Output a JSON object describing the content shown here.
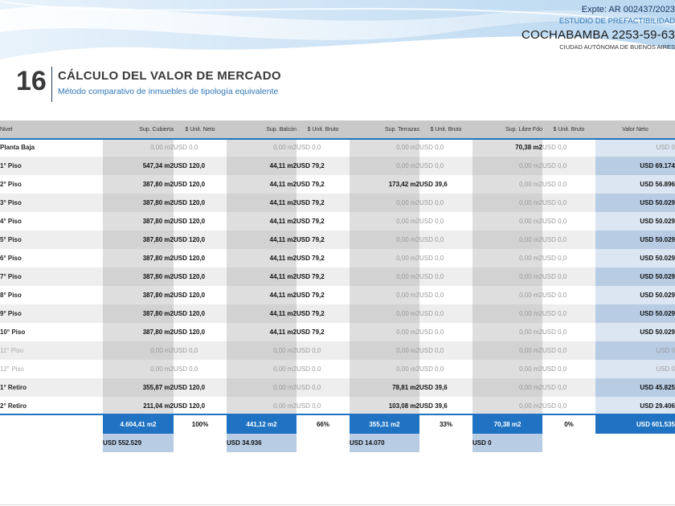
{
  "header": {
    "expte": "Expte: AR 002437/2023",
    "estudio": "ESTUDIO DE PREFACTIBILIDAD",
    "address": "COCHABAMBA 2253-59-63",
    "city": "CIUDAD AUTÓNOMA DE BUENOS AIRES"
  },
  "section": {
    "number": "16",
    "title": "CÁLCULO DEL VALOR DE MERCADO",
    "subtitle": "Método comparativo de inmuebles de tipología equivalente"
  },
  "columns": [
    "Nivel",
    "Sup. Cubierta",
    "$ Unit. Neto",
    "Sup. Balcón",
    "$ Unit. Bruto",
    "Sup. Terrazas",
    "$ Unit. Bruto",
    "Sup. Libre Fdo",
    "$ Unit. Bruto",
    "Valor Neto"
  ],
  "rows": [
    {
      "nivel": "Planta Baja",
      "dim": false,
      "cub": "0,00 m2",
      "cub_z": true,
      "u1": "USD 0,0",
      "u1_z": true,
      "bal": "0,00 m2",
      "bal_z": true,
      "u2": "USD 0,0",
      "u2_z": true,
      "ter": "0,00 m2",
      "ter_z": true,
      "u3": "USD 0,0",
      "u3_z": true,
      "lib": "70,38 m2",
      "lib_z": false,
      "u4": "USD 0,0",
      "u4_z": true,
      "neto": "USD 0",
      "neto_z": true
    },
    {
      "nivel": "1° Piso",
      "dim": false,
      "cub": "547,34 m2",
      "cub_z": false,
      "u1": "USD 120,0",
      "u1_z": false,
      "bal": "44,11 m2",
      "bal_z": false,
      "u2": "USD 79,2",
      "u2_z": false,
      "ter": "0,00 m2",
      "ter_z": true,
      "u3": "USD 0,0",
      "u3_z": true,
      "lib": "0,00 m2",
      "lib_z": true,
      "u4": "USD 0,0",
      "u4_z": true,
      "neto": "USD 69.174",
      "neto_z": false
    },
    {
      "nivel": "2° Piso",
      "dim": false,
      "cub": "387,80 m2",
      "cub_z": false,
      "u1": "USD 120,0",
      "u1_z": false,
      "bal": "44,11 m2",
      "bal_z": false,
      "u2": "USD 79,2",
      "u2_z": false,
      "ter": "173,42 m2",
      "ter_z": false,
      "u3": "USD 39,6",
      "u3_z": false,
      "lib": "0,00 m2",
      "lib_z": true,
      "u4": "USD 0,0",
      "u4_z": true,
      "neto": "USD 56.896",
      "neto_z": false
    },
    {
      "nivel": "3° Piso",
      "dim": false,
      "cub": "387,80 m2",
      "cub_z": false,
      "u1": "USD 120,0",
      "u1_z": false,
      "bal": "44,11 m2",
      "bal_z": false,
      "u2": "USD 79,2",
      "u2_z": false,
      "ter": "0,00 m2",
      "ter_z": true,
      "u3": "USD 0,0",
      "u3_z": true,
      "lib": "0,00 m2",
      "lib_z": true,
      "u4": "USD 0,0",
      "u4_z": true,
      "neto": "USD 50.029",
      "neto_z": false
    },
    {
      "nivel": "4° Piso",
      "dim": false,
      "cub": "387,80 m2",
      "cub_z": false,
      "u1": "USD 120,0",
      "u1_z": false,
      "bal": "44,11 m2",
      "bal_z": false,
      "u2": "USD 79,2",
      "u2_z": false,
      "ter": "0,00 m2",
      "ter_z": true,
      "u3": "USD 0,0",
      "u3_z": true,
      "lib": "0,00 m2",
      "lib_z": true,
      "u4": "USD 0,0",
      "u4_z": true,
      "neto": "USD 50.029",
      "neto_z": false
    },
    {
      "nivel": "5° Piso",
      "dim": false,
      "cub": "387,80 m2",
      "cub_z": false,
      "u1": "USD 120,0",
      "u1_z": false,
      "bal": "44,11 m2",
      "bal_z": false,
      "u2": "USD 79,2",
      "u2_z": false,
      "ter": "0,00 m2",
      "ter_z": true,
      "u3": "USD 0,0",
      "u3_z": true,
      "lib": "0,00 m2",
      "lib_z": true,
      "u4": "USD 0,0",
      "u4_z": true,
      "neto": "USD 50.029",
      "neto_z": false
    },
    {
      "nivel": "6° Piso",
      "dim": false,
      "cub": "387,80 m2",
      "cub_z": false,
      "u1": "USD 120,0",
      "u1_z": false,
      "bal": "44,11 m2",
      "bal_z": false,
      "u2": "USD 79,2",
      "u2_z": false,
      "ter": "0,00 m2",
      "ter_z": true,
      "u3": "USD 0,0",
      "u3_z": true,
      "lib": "0,00 m2",
      "lib_z": true,
      "u4": "USD 0,0",
      "u4_z": true,
      "neto": "USD 50.029",
      "neto_z": false
    },
    {
      "nivel": "7° Piso",
      "dim": false,
      "cub": "387,80 m2",
      "cub_z": false,
      "u1": "USD 120,0",
      "u1_z": false,
      "bal": "44,11 m2",
      "bal_z": false,
      "u2": "USD 79,2",
      "u2_z": false,
      "ter": "0,00 m2",
      "ter_z": true,
      "u3": "USD 0,0",
      "u3_z": true,
      "lib": "0,00 m2",
      "lib_z": true,
      "u4": "USD 0,0",
      "u4_z": true,
      "neto": "USD 50.029",
      "neto_z": false
    },
    {
      "nivel": "8° Piso",
      "dim": false,
      "cub": "387,80 m2",
      "cub_z": false,
      "u1": "USD 120,0",
      "u1_z": false,
      "bal": "44,11 m2",
      "bal_z": false,
      "u2": "USD 79,2",
      "u2_z": false,
      "ter": "0,00 m2",
      "ter_z": true,
      "u3": "USD 0,0",
      "u3_z": true,
      "lib": "0,00 m2",
      "lib_z": true,
      "u4": "USD 0,0",
      "u4_z": true,
      "neto": "USD 50.029",
      "neto_z": false
    },
    {
      "nivel": "9° Piso",
      "dim": false,
      "cub": "387,80 m2",
      "cub_z": false,
      "u1": "USD 120,0",
      "u1_z": false,
      "bal": "44,11 m2",
      "bal_z": false,
      "u2": "USD 79,2",
      "u2_z": false,
      "ter": "0,00 m2",
      "ter_z": true,
      "u3": "USD 0,0",
      "u3_z": true,
      "lib": "0,00 m2",
      "lib_z": true,
      "u4": "USD 0,0",
      "u4_z": true,
      "neto": "USD 50.029",
      "neto_z": false
    },
    {
      "nivel": "10° Piso",
      "dim": false,
      "cub": "387,80 m2",
      "cub_z": false,
      "u1": "USD 120,0",
      "u1_z": false,
      "bal": "44,11 m2",
      "bal_z": false,
      "u2": "USD 79,2",
      "u2_z": false,
      "ter": "0,00 m2",
      "ter_z": true,
      "u3": "USD 0,0",
      "u3_z": true,
      "lib": "0,00 m2",
      "lib_z": true,
      "u4": "USD 0,0",
      "u4_z": true,
      "neto": "USD 50.029",
      "neto_z": false
    },
    {
      "nivel": "11° Piso",
      "dim": true,
      "cub": "0,00 m2",
      "cub_z": true,
      "u1": "USD 0,0",
      "u1_z": true,
      "bal": "0,00 m2",
      "bal_z": true,
      "u2": "USD 0,0",
      "u2_z": true,
      "ter": "0,00 m2",
      "ter_z": true,
      "u3": "USD 0,0",
      "u3_z": true,
      "lib": "0,00 m2",
      "lib_z": true,
      "u4": "USD 0,0",
      "u4_z": true,
      "neto": "USD 0",
      "neto_z": true
    },
    {
      "nivel": "12° Piso",
      "dim": true,
      "cub": "0,00 m2",
      "cub_z": true,
      "u1": "USD 0,0",
      "u1_z": true,
      "bal": "0,00 m2",
      "bal_z": true,
      "u2": "USD 0,0",
      "u2_z": true,
      "ter": "0,00 m2",
      "ter_z": true,
      "u3": "USD 0,0",
      "u3_z": true,
      "lib": "0,00 m2",
      "lib_z": true,
      "u4": "USD 0,0",
      "u4_z": true,
      "neto": "USD 0",
      "neto_z": true
    },
    {
      "nivel": "1° Retiro",
      "dim": false,
      "cub": "355,87 m2",
      "cub_z": false,
      "u1": "USD 120,0",
      "u1_z": false,
      "bal": "0,00 m2",
      "bal_z": true,
      "u2": "USD 0,0",
      "u2_z": true,
      "ter": "78,81 m2",
      "ter_z": false,
      "u3": "USD 39,6",
      "u3_z": false,
      "lib": "0,00 m2",
      "lib_z": true,
      "u4": "USD 0,0",
      "u4_z": true,
      "neto": "USD 45.825",
      "neto_z": false
    },
    {
      "nivel": "2° Retiro",
      "dim": false,
      "cub": "211,04 m2",
      "cub_z": false,
      "u1": "USD 120,0",
      "u1_z": false,
      "bal": "0,00 m2",
      "bal_z": true,
      "u2": "USD 0,0",
      "u2_z": true,
      "ter": "103,08 m2",
      "ter_z": false,
      "u3": "USD 39,6",
      "u3_z": false,
      "lib": "0,00 m2",
      "lib_z": true,
      "u4": "USD 0,0",
      "u4_z": true,
      "neto": "USD 29.406",
      "neto_z": false
    }
  ],
  "totals": {
    "cub": "4.604,41 m2",
    "cub_pct": "100%",
    "bal": "441,12 m2",
    "bal_pct": "66%",
    "ter": "355,31 m2",
    "ter_pct": "33%",
    "lib": "70,38 m2",
    "lib_pct": "0%",
    "neto": "USD 601.535"
  },
  "usd_totals": {
    "cub": "USD 552.529",
    "bal": "USD 34.936",
    "ter": "USD 14.070",
    "lib": "USD 0"
  },
  "colors": {
    "accent_blue": "#1f73c2",
    "light_blue": "#b8cce4",
    "header_gray": "#c9c9c9",
    "title_blue": "#2e75b6"
  }
}
